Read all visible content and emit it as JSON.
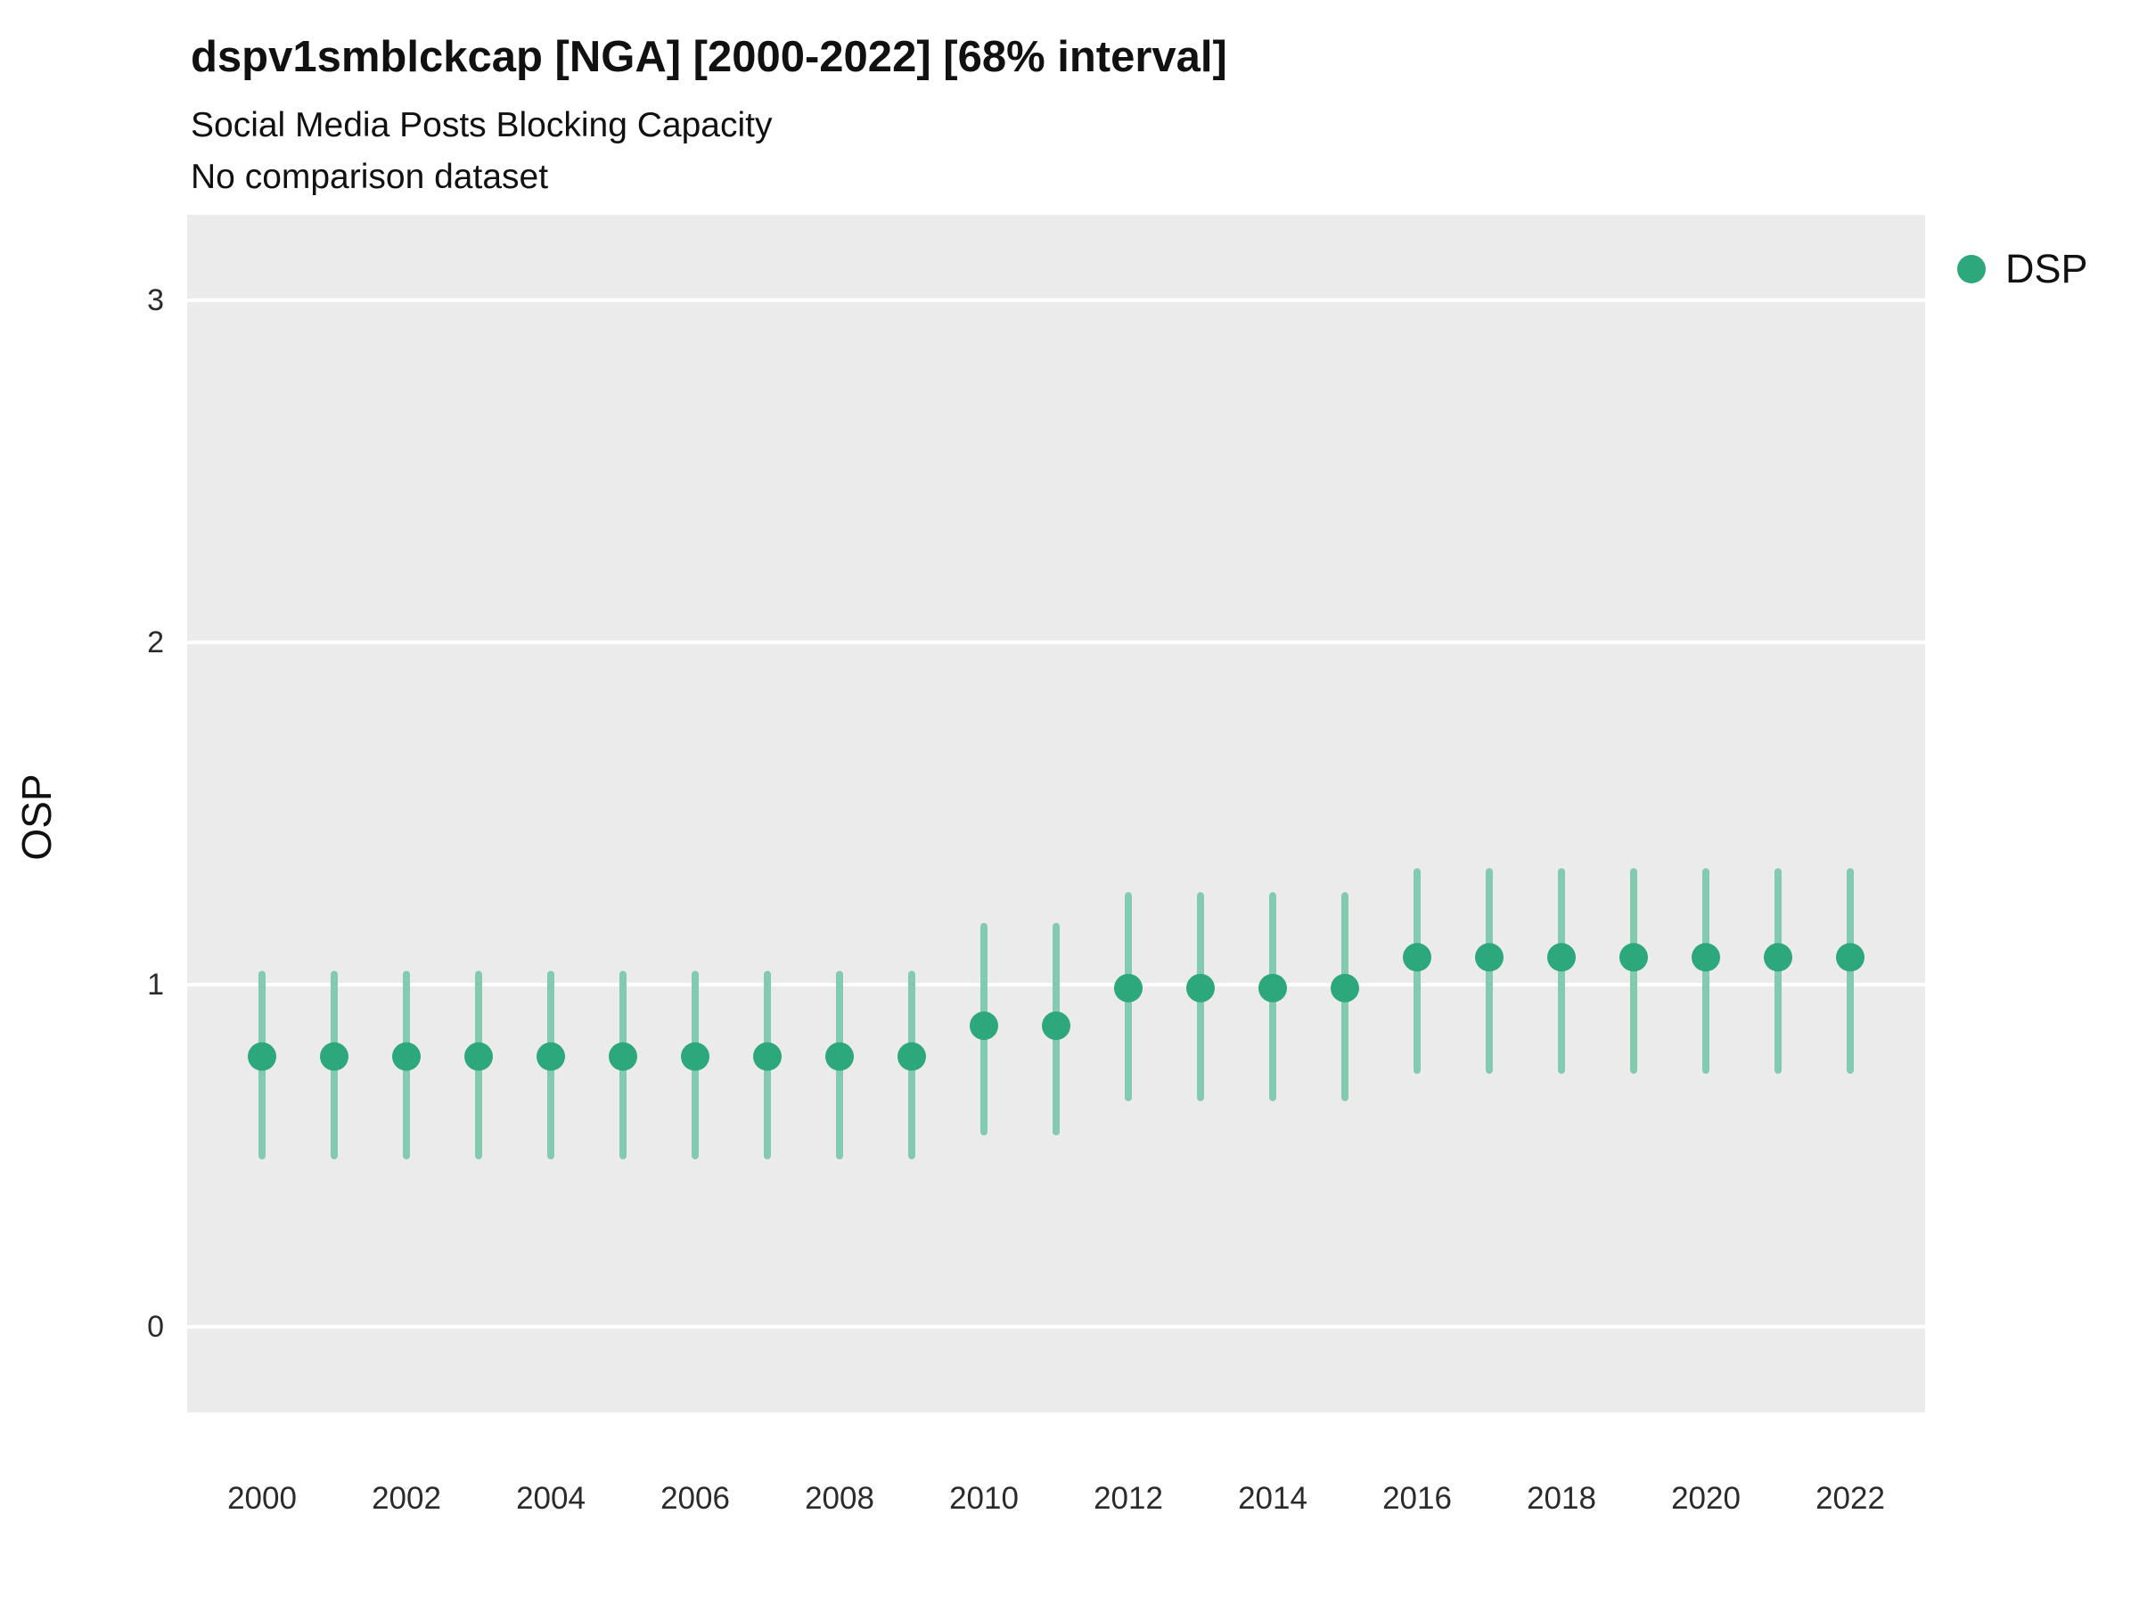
{
  "header": {
    "title": "dspv1smblckcap [NGA] [2000-2022] [68% interval]",
    "subtitle1": "Social Media Posts Blocking Capacity",
    "subtitle2": "No comparison dataset"
  },
  "y_axis_label": "OSP",
  "legend": {
    "label": "DSP"
  },
  "chart_data": {
    "type": "scatter",
    "title": "dspv1smblckcap [NGA] [2000-2022] [68% interval]",
    "subtitle": "Social Media Posts Blocking Capacity",
    "note": "No comparison dataset",
    "xlabel": "",
    "ylabel": "OSP",
    "ylim": [
      -0.25,
      3.25
    ],
    "yticks": [
      0,
      1,
      2,
      3
    ],
    "xticks": [
      2000,
      2002,
      2004,
      2006,
      2008,
      2010,
      2012,
      2014,
      2016,
      2018,
      2020,
      2022
    ],
    "interval": "68%",
    "legend_position": "right",
    "grid": "major-horizontal-white",
    "background": "#ebebeb",
    "series": [
      {
        "name": "DSP",
        "x": [
          2000,
          2001,
          2002,
          2003,
          2004,
          2005,
          2006,
          2007,
          2008,
          2009,
          2010,
          2011,
          2012,
          2013,
          2014,
          2015,
          2016,
          2017,
          2018,
          2019,
          2020,
          2021,
          2022
        ],
        "values": [
          0.79,
          0.79,
          0.79,
          0.79,
          0.79,
          0.79,
          0.79,
          0.79,
          0.79,
          0.79,
          0.88,
          0.88,
          0.99,
          0.99,
          0.99,
          0.99,
          1.08,
          1.08,
          1.08,
          1.08,
          1.08,
          1.08,
          1.08
        ],
        "lower": [
          0.5,
          0.5,
          0.5,
          0.5,
          0.5,
          0.5,
          0.5,
          0.5,
          0.5,
          0.5,
          0.57,
          0.57,
          0.67,
          0.67,
          0.67,
          0.67,
          0.75,
          0.75,
          0.75,
          0.75,
          0.75,
          0.75,
          0.75
        ],
        "upper": [
          1.03,
          1.03,
          1.03,
          1.03,
          1.03,
          1.03,
          1.03,
          1.03,
          1.03,
          1.03,
          1.17,
          1.17,
          1.26,
          1.26,
          1.26,
          1.26,
          1.33,
          1.33,
          1.33,
          1.33,
          1.33,
          1.33,
          1.33
        ]
      }
    ],
    "colors": {
      "point": "#2da77c",
      "interval": "#82cbb0",
      "gridline": "#ffffff"
    }
  }
}
